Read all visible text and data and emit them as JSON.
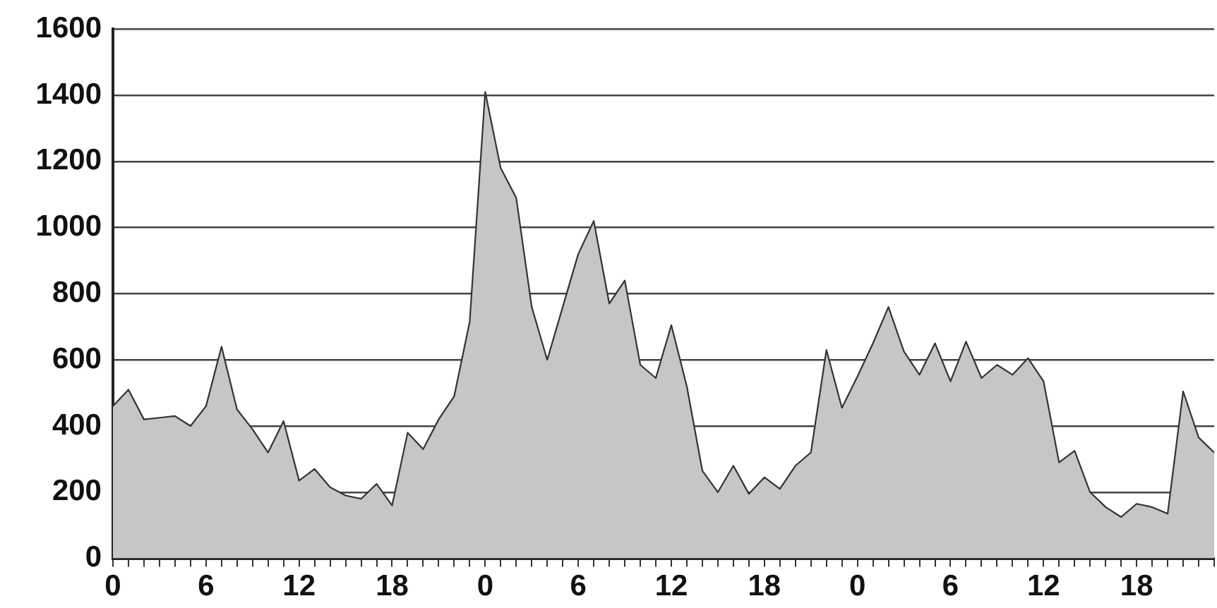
{
  "chart_data": {
    "type": "area",
    "categories": [
      "0",
      null,
      null,
      null,
      null,
      null,
      "6",
      null,
      null,
      null,
      null,
      null,
      "12",
      null,
      null,
      null,
      null,
      null,
      "18",
      null,
      null,
      null,
      null,
      null,
      "0",
      null,
      null,
      null,
      null,
      null,
      "6",
      null,
      null,
      null,
      null,
      null,
      "12",
      null,
      null,
      null,
      null,
      null,
      "18",
      null,
      null,
      null,
      null,
      null,
      "0",
      null,
      null,
      null,
      null,
      null,
      "6",
      null,
      null,
      null,
      null,
      null,
      "12",
      null,
      null,
      null,
      null,
      null,
      "18",
      null,
      null,
      null,
      null,
      null
    ],
    "series": [
      {
        "color": "#c4c6c8",
        "values": [
          460,
          510,
          420,
          425,
          430,
          400,
          460,
          640,
          450,
          390,
          320,
          415,
          235,
          270,
          215,
          190,
          180,
          225,
          160,
          380,
          330,
          420,
          490,
          715,
          1410,
          1180,
          1090,
          760,
          600,
          760,
          920,
          1020,
          770,
          840,
          585,
          545,
          705,
          520,
          265,
          200,
          280,
          195,
          245,
          210,
          280,
          320,
          630,
          455,
          550,
          650,
          760,
          625,
          555,
          650,
          535,
          655,
          545,
          585,
          555,
          605,
          535,
          290,
          325,
          200,
          155,
          125,
          165,
          155,
          135,
          505,
          365,
          320
        ]
      }
    ],
    "ylim": [
      0,
      1600
    ],
    "yticks": [
      0,
      200,
      400,
      600,
      800,
      1000,
      1200,
      1400,
      1600
    ],
    "grid": "y",
    "marker": "none",
    "line_style": "solid"
  }
}
